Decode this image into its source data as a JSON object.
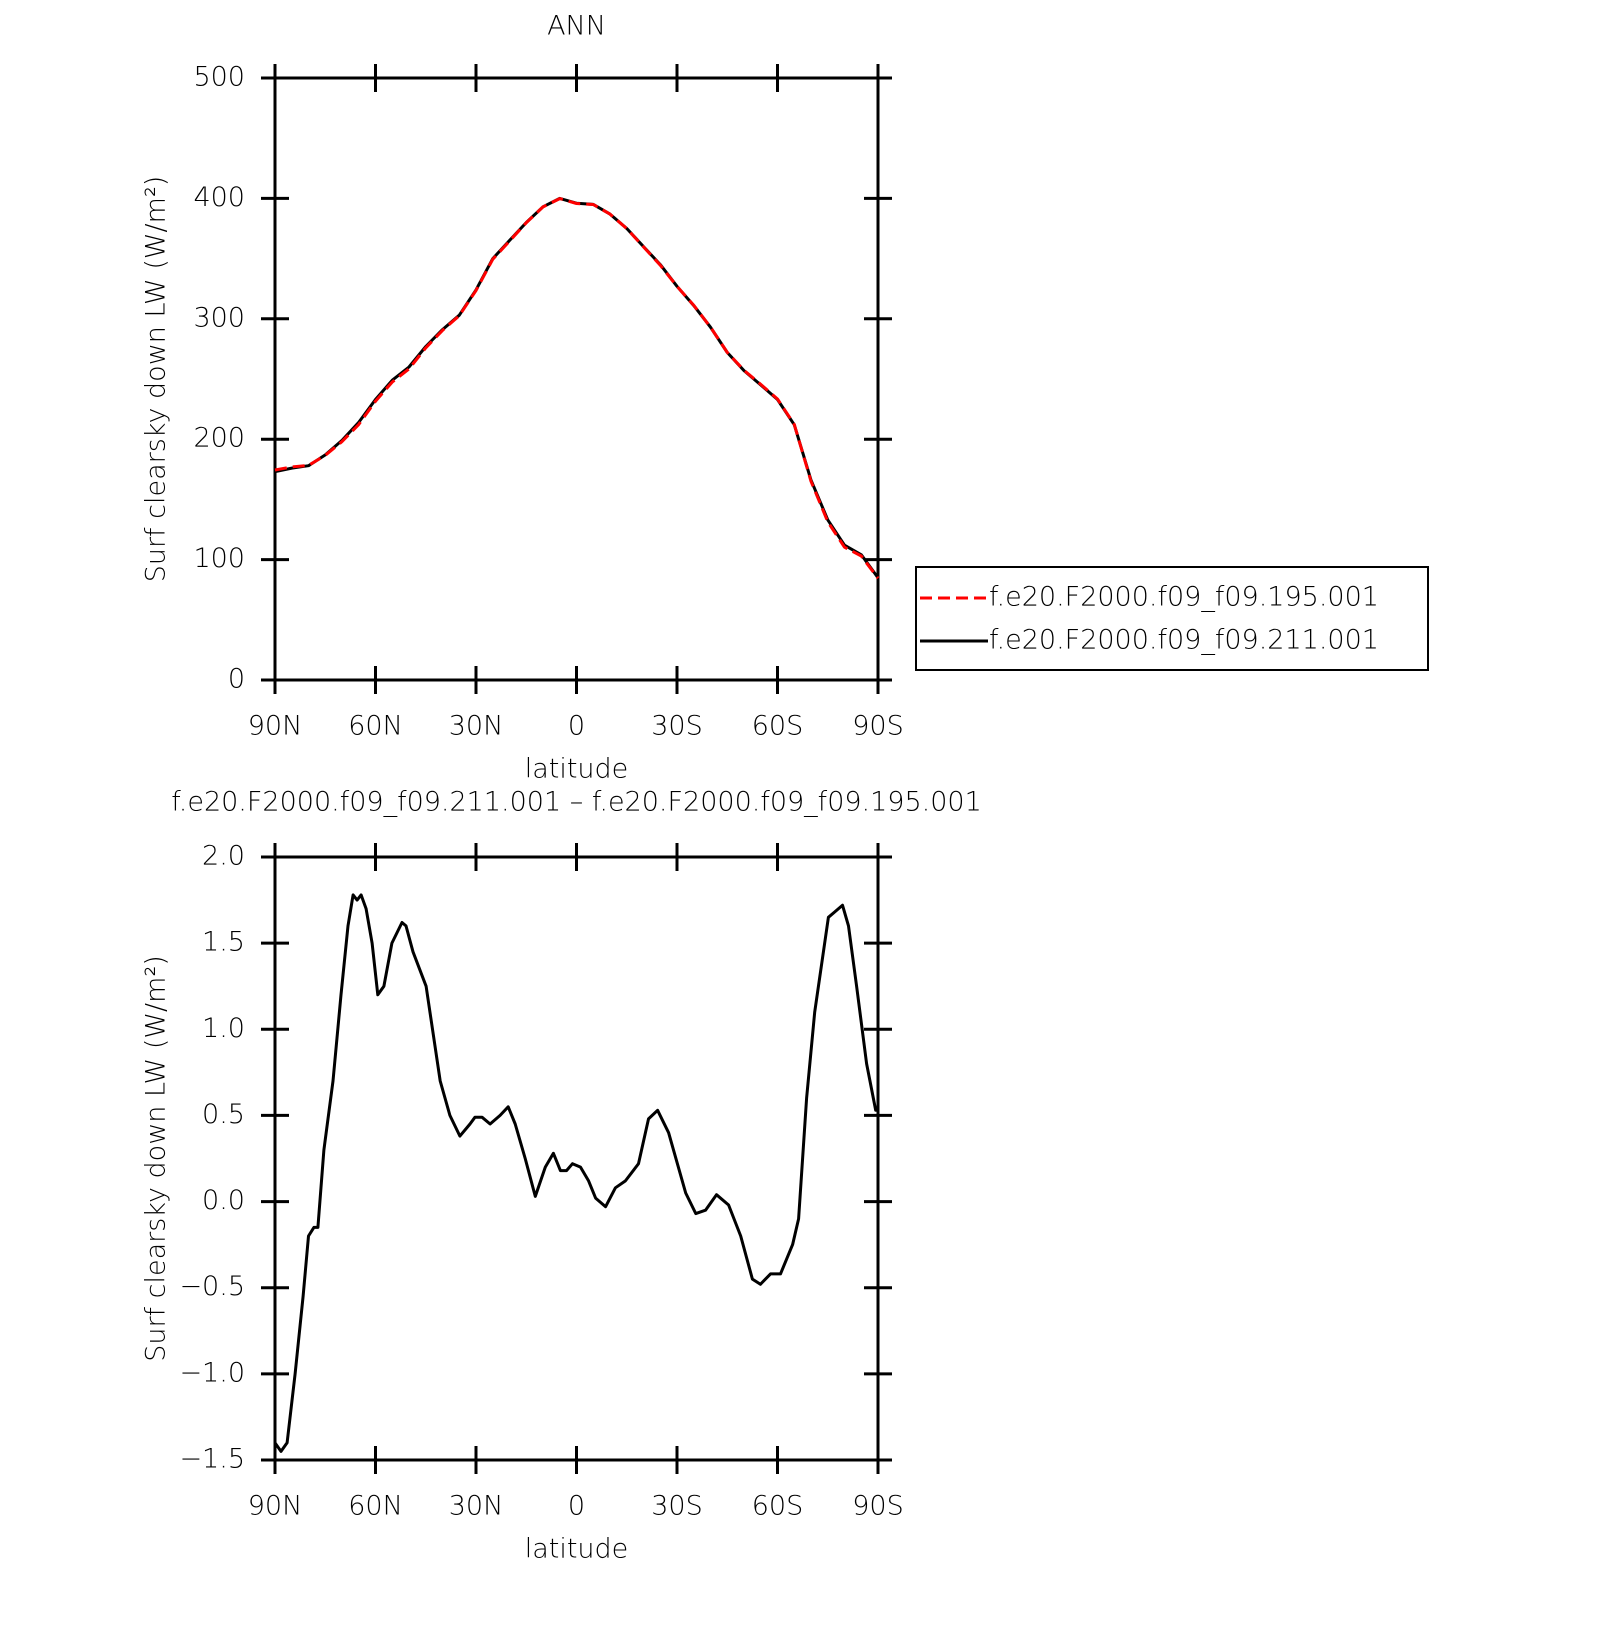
{
  "chart_data": [
    {
      "type": "line",
      "title": "ANN",
      "xlabel": "latitude",
      "ylabel": "Surf clearsky down LW (W/m²)",
      "x": [
        90,
        85,
        80,
        75,
        70,
        65,
        60,
        55,
        50,
        45,
        40,
        35,
        30,
        25,
        20,
        15,
        10,
        5,
        0,
        -5,
        -10,
        -15,
        -20,
        -25,
        -30,
        -35,
        -40,
        -45,
        -50,
        -55,
        -60,
        -65,
        -70,
        -75,
        -80,
        -85,
        -90
      ],
      "series": [
        {
          "name": "f.e20.F2000.f09_f09.195.001",
          "color": "#ff0000",
          "line_style": "dashed",
          "values": [
            174.4,
            177,
            178.2,
            186.6,
            198,
            212.3,
            231.6,
            247.5,
            258.4,
            275.9,
            290.4,
            302.6,
            323.5,
            349.5,
            364.5,
            379.8,
            392.9,
            399.8,
            395.8,
            394.9,
            387,
            374.9,
            359.7,
            344.5,
            326.9,
            311.1,
            293,
            272,
            257.2,
            245.5,
            233.4,
            212.2,
            165,
            131.4,
            110.3,
            103,
            84.5
          ]
        },
        {
          "name": "f.e20.F2000.f09_f09.211.001",
          "color": "#000000",
          "line_style": "solid",
          "values": [
            173,
            176,
            178,
            187,
            199,
            214,
            233,
            249,
            260,
            277,
            291,
            303,
            324,
            350,
            365,
            380,
            393,
            400,
            396,
            395,
            387,
            375,
            360,
            345,
            327,
            311,
            293,
            272,
            257,
            245,
            233,
            212,
            166,
            133,
            112,
            104,
            85
          ]
        }
      ],
      "xlim": [
        90,
        -90
      ],
      "xticks": [
        {
          "value": 90,
          "label": "90N"
        },
        {
          "value": 60,
          "label": "60N"
        },
        {
          "value": 30,
          "label": "30N"
        },
        0,
        {
          "value": -30,
          "label": "30S"
        },
        {
          "value": -60,
          "label": "60S"
        },
        {
          "value": -90,
          "label": "90S"
        }
      ],
      "ylim": [
        0,
        500
      ],
      "yticks": [
        0,
        100,
        200,
        300,
        400,
        500
      ],
      "legend": "right"
    },
    {
      "type": "line",
      "title": "f.e20.F2000.f09_f09.211.001 – f.e20.F2000.f09_f09.195.001",
      "xlabel": "latitude",
      "ylabel": "Surf clearsky down LW (W/m²)",
      "x": [
        90,
        88.2,
        86.4,
        84,
        81.6,
        80,
        78.4,
        77.2,
        75.4,
        72.7,
        70.3,
        68.2,
        66.7,
        65.5,
        64.3,
        62.8,
        61,
        59.3,
        57.5,
        55.1,
        52.1,
        50.9,
        48.8,
        44.9,
        40.7,
        37.8,
        34.8,
        31.8,
        30.3,
        28.2,
        25.8,
        22.8,
        20.4,
        18.3,
        15.3,
        12.3,
        9.3,
        6.9,
        4.8,
        3,
        1.2,
        -1.2,
        -3.6,
        -5.7,
        -8.7,
        -11.6,
        -14.6,
        -18.5,
        -21.5,
        -24.2,
        -27.5,
        -32.6,
        -35.6,
        -38.5,
        -41.8,
        -45.4,
        -49,
        -52.5,
        -54.9,
        -57.9,
        -60.9,
        -64.5,
        -66.3,
        -68.7,
        -71.1,
        -75.2,
        -77,
        -79.4,
        -81.2,
        -83.6,
        -86.6,
        -89.3,
        -90
      ],
      "series": [
        {
          "name": "f.e20.F2000.f09_f09.211.001 – f.e20.F2000.f09_f09.195.001",
          "color": "#000000",
          "line_style": "solid",
          "values": [
            -1.4,
            -1.45,
            -1.4,
            -1.0,
            -0.55,
            -0.2,
            -0.15,
            -0.15,
            0.3,
            0.7,
            1.2,
            1.6,
            1.78,
            1.75,
            1.78,
            1.7,
            1.5,
            1.2,
            1.25,
            1.5,
            1.62,
            1.6,
            1.45,
            1.25,
            0.7,
            0.5,
            0.38,
            0.45,
            0.49,
            0.49,
            0.45,
            0.5,
            0.55,
            0.45,
            0.25,
            0.03,
            0.2,
            0.28,
            0.18,
            0.18,
            0.22,
            0.2,
            0.12,
            0.02,
            -0.03,
            0.08,
            0.12,
            0.22,
            0.48,
            0.53,
            0.4,
            0.05,
            -0.07,
            -0.05,
            0.04,
            -0.02,
            -0.2,
            -0.45,
            -0.48,
            -0.42,
            -0.42,
            -0.25,
            -0.1,
            0.6,
            1.1,
            1.65,
            1.68,
            1.72,
            1.6,
            1.25,
            0.8,
            0.53,
            0.53
          ]
        }
      ],
      "xlim": [
        90,
        -90
      ],
      "xticks": [
        {
          "value": 90,
          "label": "90N"
        },
        {
          "value": 60,
          "label": "60N"
        },
        {
          "value": 30,
          "label": "30N"
        },
        0,
        {
          "value": -30,
          "label": "30S"
        },
        {
          "value": -60,
          "label": "60S"
        },
        {
          "value": -90,
          "label": "90S"
        }
      ],
      "ylim": [
        -1.5,
        2.0
      ],
      "yticks": [
        {
          "value": -1.5,
          "label": "−1.5"
        },
        {
          "value": -1.0,
          "label": "−1.0"
        },
        {
          "value": -0.5,
          "label": "−0.5"
        },
        {
          "value": 0,
          "label": "0.0"
        },
        {
          "value": 0.5,
          "label": "0.5"
        },
        {
          "value": 1.0,
          "label": "1.0"
        },
        {
          "value": 1.5,
          "label": "1.5"
        },
        {
          "value": 2.0,
          "label": "2.0"
        }
      ]
    }
  ]
}
